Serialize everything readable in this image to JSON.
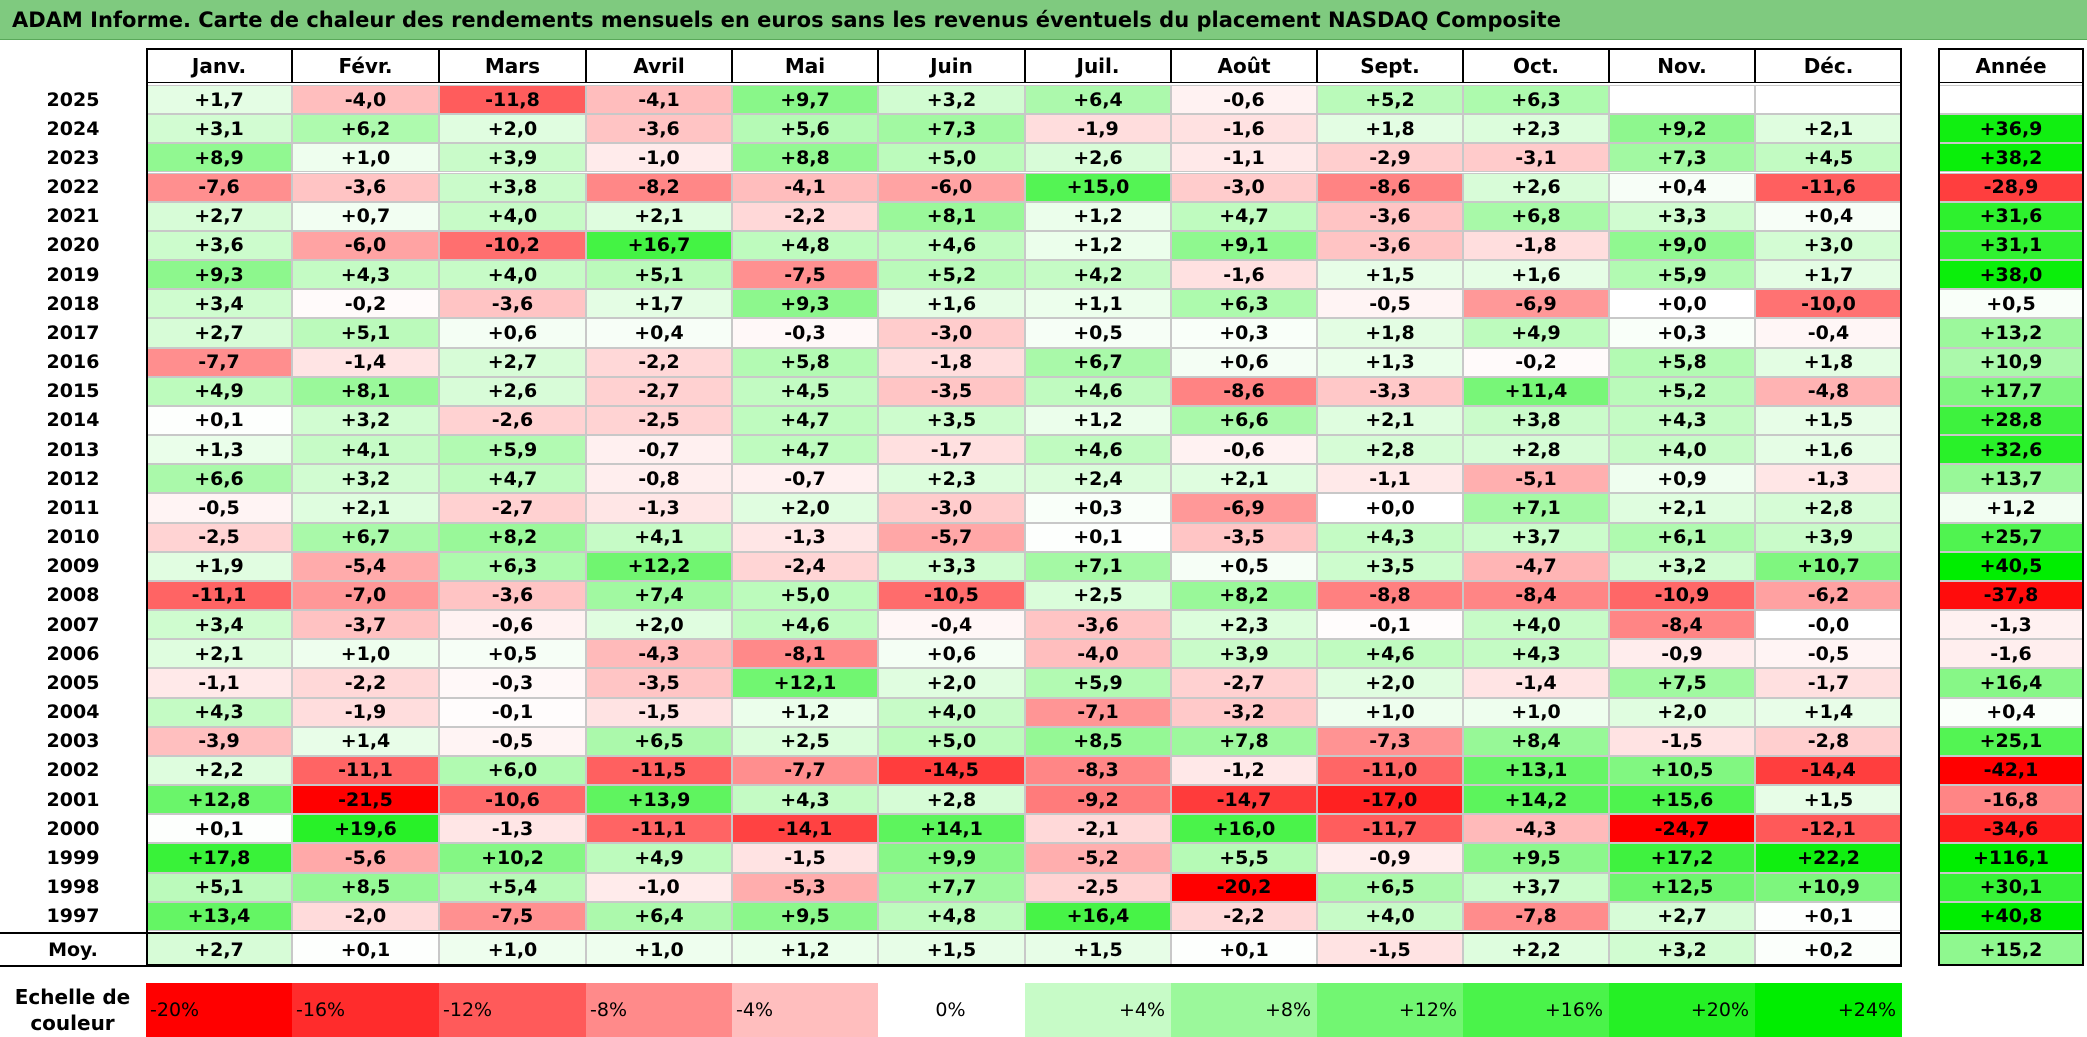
{
  "title": "ADAM Informe. Carte de chaleur des rendements mensuels en euros sans les revenus éventuels du placement NASDAQ Composite",
  "chart_data": {
    "type": "heatmap",
    "title": "ADAM Informe. Carte de chaleur des rendements mensuels en euros sans les revenus éventuels du placement NASDAQ Composite",
    "columns": [
      "Janv.",
      "Févr.",
      "Mars",
      "Avril",
      "Mai",
      "Juin",
      "Juil.",
      "Août",
      "Sept.",
      "Oct.",
      "Nov.",
      "Déc."
    ],
    "annual_label": "Année",
    "rows": [
      {
        "year": "2025",
        "values": [
          "+1,7",
          "-4,0",
          "-11,8",
          "-4,1",
          "+9,7",
          "+3,2",
          "+6,4",
          "-0,6",
          "+5,2",
          "+6,3",
          "",
          ""
        ],
        "annual": ""
      },
      {
        "year": "2024",
        "values": [
          "+3,1",
          "+6,2",
          "+2,0",
          "-3,6",
          "+5,6",
          "+7,3",
          "-1,9",
          "-1,6",
          "+1,8",
          "+2,3",
          "+9,2",
          "+2,1"
        ],
        "annual": "+36,9"
      },
      {
        "year": "2023",
        "values": [
          "+8,9",
          "+1,0",
          "+3,9",
          "-1,0",
          "+8,8",
          "+5,0",
          "+2,6",
          "-1,1",
          "-2,9",
          "-3,1",
          "+7,3",
          "+4,5"
        ],
        "annual": "+38,2"
      },
      {
        "year": "2022",
        "values": [
          "-7,6",
          "-3,6",
          "+3,8",
          "-8,2",
          "-4,1",
          "-6,0",
          "+15,0",
          "-3,0",
          "-8,6",
          "+2,6",
          "+0,4",
          "-11,6"
        ],
        "annual": "-28,9"
      },
      {
        "year": "2021",
        "values": [
          "+2,7",
          "+0,7",
          "+4,0",
          "+2,1",
          "-2,2",
          "+8,1",
          "+1,2",
          "+4,7",
          "-3,6",
          "+6,8",
          "+3,3",
          "+0,4"
        ],
        "annual": "+31,6"
      },
      {
        "year": "2020",
        "values": [
          "+3,6",
          "-6,0",
          "-10,2",
          "+16,7",
          "+4,8",
          "+4,6",
          "+1,2",
          "+9,1",
          "-3,6",
          "-1,8",
          "+9,0",
          "+3,0"
        ],
        "annual": "+31,1"
      },
      {
        "year": "2019",
        "values": [
          "+9,3",
          "+4,3",
          "+4,0",
          "+5,1",
          "-7,5",
          "+5,2",
          "+4,2",
          "-1,6",
          "+1,5",
          "+1,6",
          "+5,9",
          "+1,7"
        ],
        "annual": "+38,0"
      },
      {
        "year": "2018",
        "values": [
          "+3,4",
          "-0,2",
          "-3,6",
          "+1,7",
          "+9,3",
          "+1,6",
          "+1,1",
          "+6,3",
          "-0,5",
          "-6,9",
          "+0,0",
          "-10,0"
        ],
        "annual": "+0,5"
      },
      {
        "year": "2017",
        "values": [
          "+2,7",
          "+5,1",
          "+0,6",
          "+0,4",
          "-0,3",
          "-3,0",
          "+0,5",
          "+0,3",
          "+1,8",
          "+4,9",
          "+0,3",
          "-0,4"
        ],
        "annual": "+13,2"
      },
      {
        "year": "2016",
        "values": [
          "-7,7",
          "-1,4",
          "+2,7",
          "-2,2",
          "+5,8",
          "-1,8",
          "+6,7",
          "+0,6",
          "+1,3",
          "-0,2",
          "+5,8",
          "+1,8"
        ],
        "annual": "+10,9"
      },
      {
        "year": "2015",
        "values": [
          "+4,9",
          "+8,1",
          "+2,6",
          "-2,7",
          "+4,5",
          "-3,5",
          "+4,6",
          "-8,6",
          "-3,3",
          "+11,4",
          "+5,2",
          "-4,8"
        ],
        "annual": "+17,7"
      },
      {
        "year": "2014",
        "values": [
          "+0,1",
          "+3,2",
          "-2,6",
          "-2,5",
          "+4,7",
          "+3,5",
          "+1,2",
          "+6,6",
          "+2,1",
          "+3,8",
          "+4,3",
          "+1,5"
        ],
        "annual": "+28,8"
      },
      {
        "year": "2013",
        "values": [
          "+1,3",
          "+4,1",
          "+5,9",
          "-0,7",
          "+4,7",
          "-1,7",
          "+4,6",
          "-0,6",
          "+2,8",
          "+2,8",
          "+4,0",
          "+1,6"
        ],
        "annual": "+32,6"
      },
      {
        "year": "2012",
        "values": [
          "+6,6",
          "+3,2",
          "+4,7",
          "-0,8",
          "-0,7",
          "+2,3",
          "+2,4",
          "+2,1",
          "-1,1",
          "-5,1",
          "+0,9",
          "-1,3"
        ],
        "annual": "+13,7"
      },
      {
        "year": "2011",
        "values": [
          "-0,5",
          "+2,1",
          "-2,7",
          "-1,3",
          "+2,0",
          "-3,0",
          "+0,3",
          "-6,9",
          "+0,0",
          "+7,1",
          "+2,1",
          "+2,8"
        ],
        "annual": "+1,2"
      },
      {
        "year": "2010",
        "values": [
          "-2,5",
          "+6,7",
          "+8,2",
          "+4,1",
          "-1,3",
          "-5,7",
          "+0,1",
          "-3,5",
          "+4,3",
          "+3,7",
          "+6,1",
          "+3,9"
        ],
        "annual": "+25,7"
      },
      {
        "year": "2009",
        "values": [
          "+1,9",
          "-5,4",
          "+6,3",
          "+12,2",
          "-2,4",
          "+3,3",
          "+7,1",
          "+0,5",
          "+3,5",
          "-4,7",
          "+3,2",
          "+10,7"
        ],
        "annual": "+40,5"
      },
      {
        "year": "2008",
        "values": [
          "-11,1",
          "-7,0",
          "-3,6",
          "+7,4",
          "+5,0",
          "-10,5",
          "+2,5",
          "+8,2",
          "-8,8",
          "-8,4",
          "-10,9",
          "-6,2"
        ],
        "annual": "-37,8"
      },
      {
        "year": "2007",
        "values": [
          "+3,4",
          "-3,7",
          "-0,6",
          "+2,0",
          "+4,6",
          "-0,4",
          "-3,6",
          "+2,3",
          "-0,1",
          "+4,0",
          "-8,4",
          "-0,0"
        ],
        "annual": "-1,3"
      },
      {
        "year": "2006",
        "values": [
          "+2,1",
          "+1,0",
          "+0,5",
          "-4,3",
          "-8,1",
          "+0,6",
          "-4,0",
          "+3,9",
          "+4,6",
          "+4,3",
          "-0,9",
          "-0,5"
        ],
        "annual": "-1,6"
      },
      {
        "year": "2005",
        "values": [
          "-1,1",
          "-2,2",
          "-0,3",
          "-3,5",
          "+12,1",
          "+2,0",
          "+5,9",
          "-2,7",
          "+2,0",
          "-1,4",
          "+7,5",
          "-1,7"
        ],
        "annual": "+16,4"
      },
      {
        "year": "2004",
        "values": [
          "+4,3",
          "-1,9",
          "-0,1",
          "-1,5",
          "+1,2",
          "+4,0",
          "-7,1",
          "-3,2",
          "+1,0",
          "+1,0",
          "+2,0",
          "+1,4"
        ],
        "annual": "+0,4"
      },
      {
        "year": "2003",
        "values": [
          "-3,9",
          "+1,4",
          "-0,5",
          "+6,5",
          "+2,5",
          "+5,0",
          "+8,5",
          "+7,8",
          "-7,3",
          "+8,4",
          "-1,5",
          "-2,8"
        ],
        "annual": "+25,1"
      },
      {
        "year": "2002",
        "values": [
          "+2,2",
          "-11,1",
          "+6,0",
          "-11,5",
          "-7,7",
          "-14,5",
          "-8,3",
          "-1,2",
          "-11,0",
          "+13,1",
          "+10,5",
          "-14,4"
        ],
        "annual": "-42,1"
      },
      {
        "year": "2001",
        "values": [
          "+12,8",
          "-21,5",
          "-10,6",
          "+13,9",
          "+4,3",
          "+2,8",
          "-9,2",
          "-14,7",
          "-17,0",
          "+14,2",
          "+15,6",
          "+1,5"
        ],
        "annual": "-16,8"
      },
      {
        "year": "2000",
        "values": [
          "+0,1",
          "+19,6",
          "-1,3",
          "-11,1",
          "-14,1",
          "+14,1",
          "-2,1",
          "+16,0",
          "-11,7",
          "-4,3",
          "-24,7",
          "-12,1"
        ],
        "annual": "-34,6"
      },
      {
        "year": "1999",
        "values": [
          "+17,8",
          "-5,6",
          "+10,2",
          "+4,9",
          "-1,5",
          "+9,9",
          "-5,2",
          "+5,5",
          "-0,9",
          "+9,5",
          "+17,2",
          "+22,2"
        ],
        "annual": "+116,1"
      },
      {
        "year": "1998",
        "values": [
          "+5,1",
          "+8,5",
          "+5,4",
          "-1,0",
          "-5,3",
          "+7,7",
          "-2,5",
          "-20,2",
          "+6,5",
          "+3,7",
          "+12,5",
          "+10,9"
        ],
        "annual": "+30,1"
      },
      {
        "year": "1997",
        "values": [
          "+13,4",
          "-2,0",
          "-7,5",
          "+6,4",
          "+9,5",
          "+4,8",
          "+16,4",
          "-2,2",
          "+4,0",
          "-7,8",
          "+2,7",
          "+0,1"
        ],
        "annual": "+40,8"
      }
    ],
    "average": {
      "label": "Moy.",
      "values": [
        "+2,7",
        "+0,1",
        "+1,0",
        "+1,0",
        "+1,2",
        "+1,5",
        "+1,5",
        "+0,1",
        "-1,5",
        "+2,2",
        "+3,2",
        "+0,2"
      ],
      "annual": "+15,2"
    },
    "legend": {
      "label": "Echelle de couleur",
      "steps": [
        {
          "value": -20,
          "text": "-20%"
        },
        {
          "value": -16,
          "text": "-16%"
        },
        {
          "value": -12,
          "text": "-12%"
        },
        {
          "value": -8,
          "text": "-8%"
        },
        {
          "value": -4,
          "text": "-4%"
        },
        {
          "value": 0,
          "text": "0%"
        },
        {
          "value": 4,
          "text": "+4%"
        },
        {
          "value": 8,
          "text": "+8%"
        },
        {
          "value": 12,
          "text": "+12%"
        },
        {
          "value": 16,
          "text": "+16%"
        },
        {
          "value": 20,
          "text": "+20%"
        },
        {
          "value": 24,
          "text": "+24%"
        }
      ]
    },
    "color_scale": {
      "negative_max": "#ff0000",
      "positive_max": "#00ee00",
      "neutral": "#ffffff",
      "monthly_range": [
        -20,
        24
      ],
      "annual_range": [
        -40,
        40
      ]
    }
  }
}
